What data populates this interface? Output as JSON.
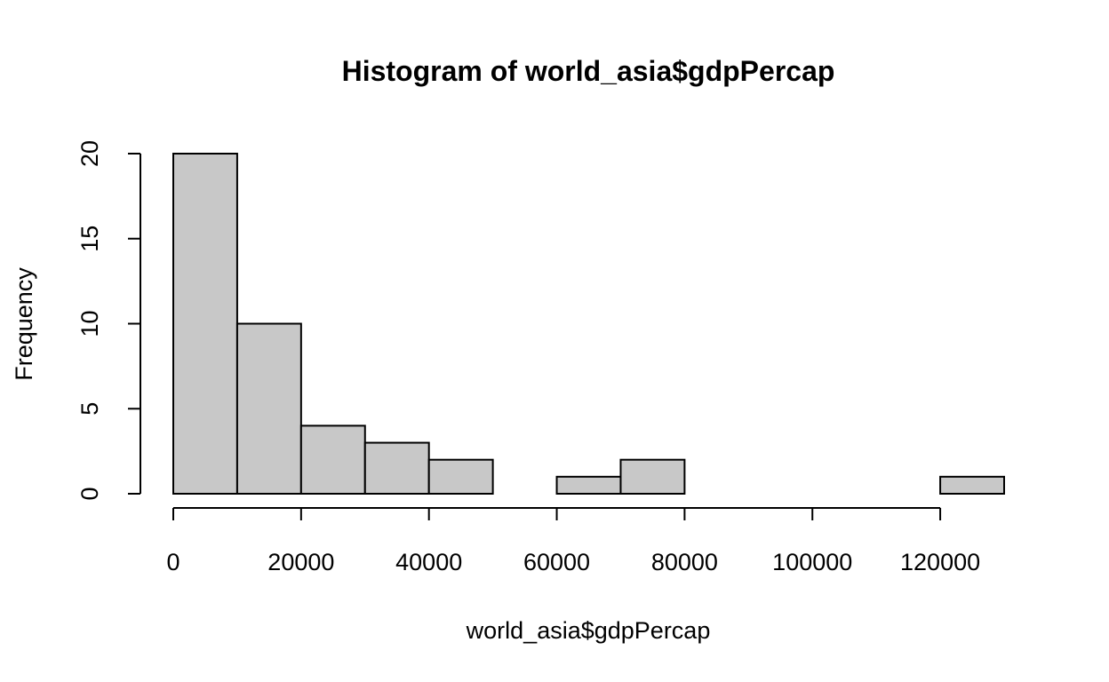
{
  "chart_data": {
    "type": "bar",
    "title": "Histogram of world_asia$gdpPercap",
    "xlabel": "world_asia$gdpPercap",
    "ylabel": "Frequency",
    "bins": [
      {
        "start": 0,
        "end": 10000,
        "value": 20
      },
      {
        "start": 10000,
        "end": 20000,
        "value": 10
      },
      {
        "start": 20000,
        "end": 30000,
        "value": 4
      },
      {
        "start": 30000,
        "end": 40000,
        "value": 3
      },
      {
        "start": 40000,
        "end": 50000,
        "value": 2
      },
      {
        "start": 50000,
        "end": 60000,
        "value": 0
      },
      {
        "start": 60000,
        "end": 70000,
        "value": 1
      },
      {
        "start": 70000,
        "end": 80000,
        "value": 2
      },
      {
        "start": 80000,
        "end": 90000,
        "value": 0
      },
      {
        "start": 90000,
        "end": 100000,
        "value": 0
      },
      {
        "start": 100000,
        "end": 110000,
        "value": 0
      },
      {
        "start": 110000,
        "end": 120000,
        "value": 0
      },
      {
        "start": 120000,
        "end": 130000,
        "value": 1
      }
    ],
    "xlim": [
      0,
      130000
    ],
    "ylim": [
      0,
      20
    ],
    "x_ticks": [
      0,
      20000,
      40000,
      60000,
      80000,
      100000,
      120000
    ],
    "x_tick_labels": [
      "0",
      "20000",
      "40000",
      "60000",
      "80000",
      "100000",
      "120000"
    ],
    "y_ticks": [
      0,
      5,
      10,
      15,
      20
    ],
    "y_tick_labels": [
      "0",
      "5",
      "10",
      "15",
      "20"
    ],
    "bar_color": "#c8c8c8",
    "edge_color": "#000000",
    "grid": false
  }
}
